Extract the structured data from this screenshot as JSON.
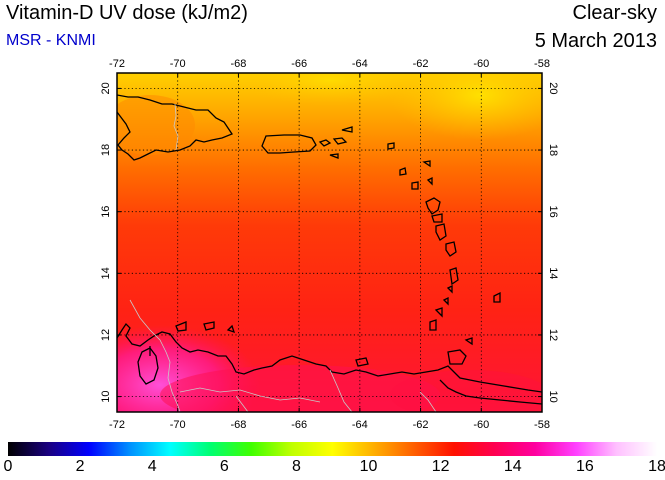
{
  "header": {
    "title": "Vitamin-D UV dose (kJ/m2)",
    "subtitle": "MSR - KNMI",
    "sky_condition": "Clear-sky",
    "date": "5 March 2013"
  },
  "map": {
    "lon_range": [
      -72,
      -58
    ],
    "lat_range": [
      9.5,
      20.5
    ],
    "lon_ticks": [
      "-72",
      "-70",
      "-68",
      "-66",
      "-64",
      "-62",
      "-60",
      "-58"
    ],
    "lat_ticks": [
      "10",
      "12",
      "14",
      "16",
      "18",
      "20"
    ],
    "grid": "dotted",
    "coastline_color": "#000000",
    "border_color": "#c0c0c0"
  },
  "colorbar": {
    "min": 0,
    "max": 18,
    "labels": [
      "0",
      "2",
      "4",
      "6",
      "8",
      "10",
      "12",
      "14",
      "16",
      "18"
    ],
    "colors": [
      "#000000",
      "#1a0080",
      "#0000ff",
      "#0090ff",
      "#00ffff",
      "#00ff70",
      "#40ff00",
      "#c0ff00",
      "#ffff00",
      "#ffb000",
      "#ff6000",
      "#ff1000",
      "#ff0050",
      "#ff00a0",
      "#ff40ff",
      "#ffc0ff",
      "#ffffff"
    ]
  }
}
